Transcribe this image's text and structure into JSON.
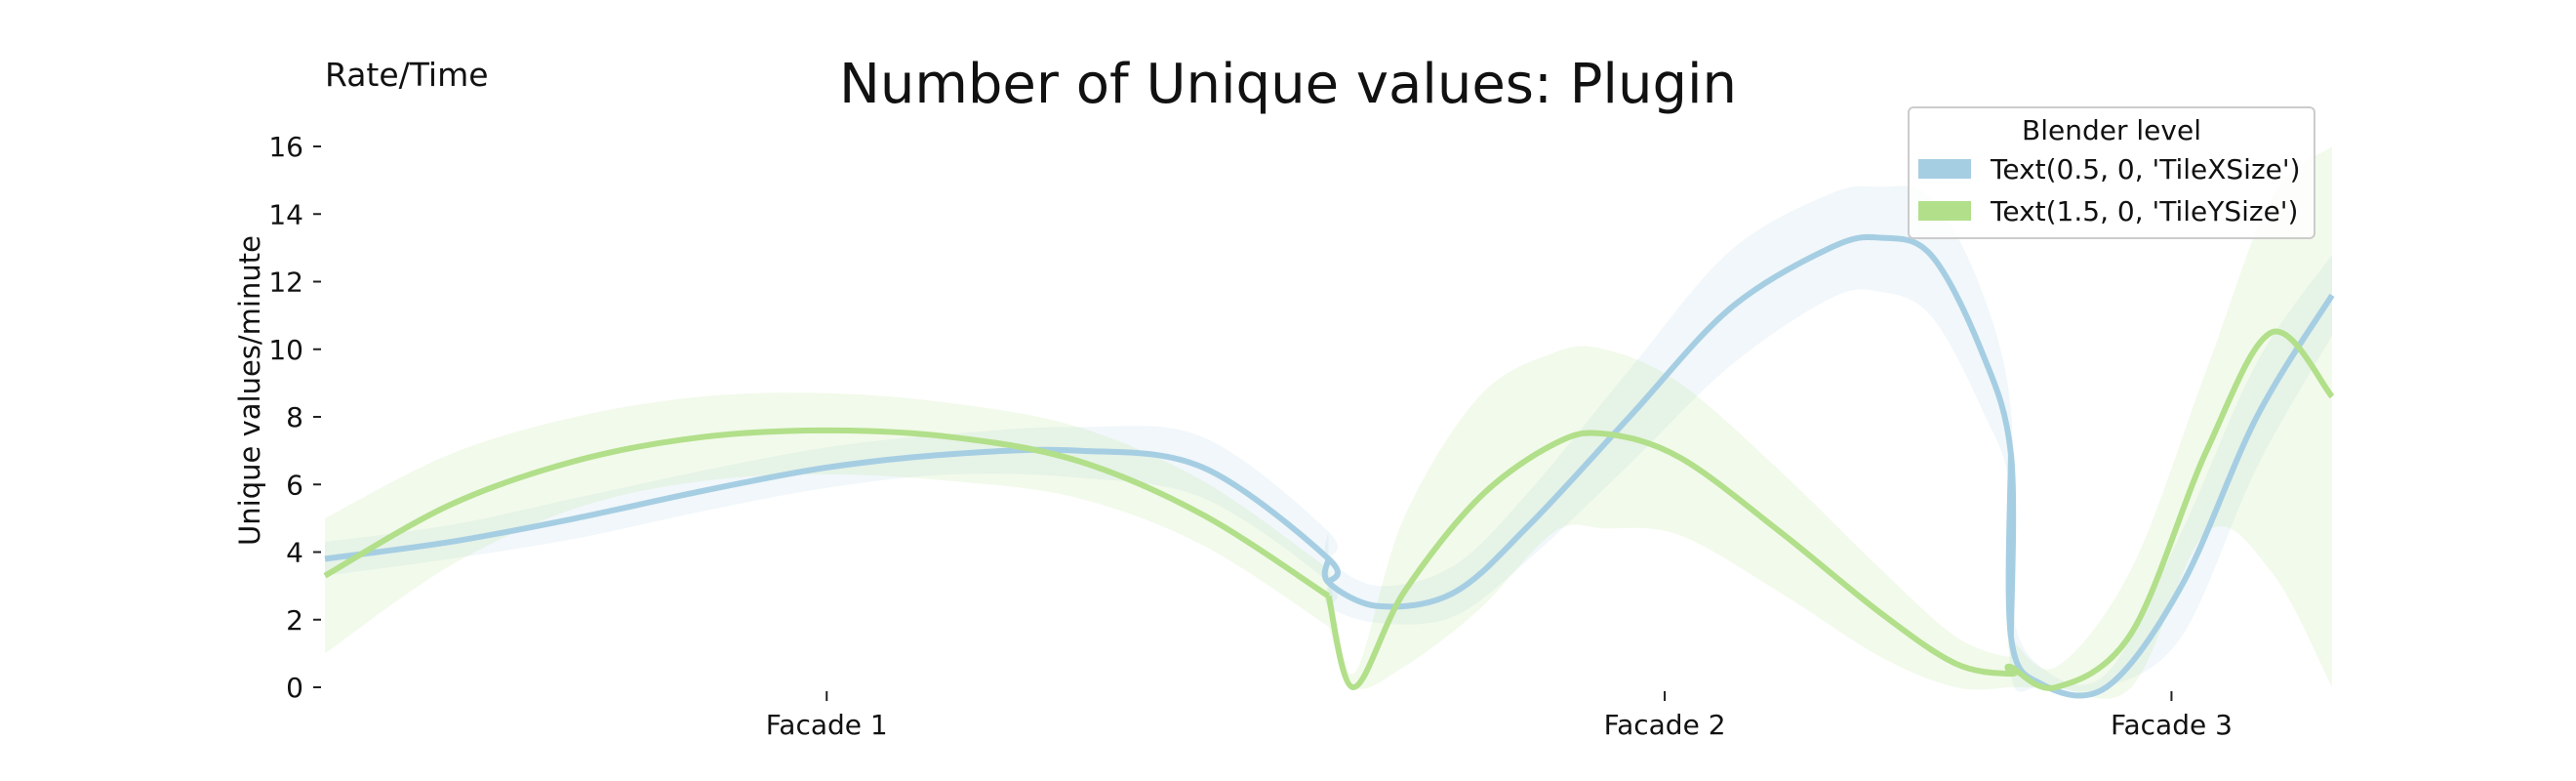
{
  "chart_data": {
    "type": "line",
    "title": "Number of Unique values: Plugin",
    "corner_label": "Rate/Time",
    "xlabel": "",
    "ylabel": "Unique values/minute",
    "ylim": [
      0,
      16
    ],
    "yticks": [
      0,
      2,
      4,
      6,
      8,
      10,
      12,
      14,
      16
    ],
    "xlim": [
      0,
      4
    ],
    "categories": [
      {
        "label": "Facade 1",
        "x": 1.0
      },
      {
        "label": "Facade 2",
        "x": 2.67
      },
      {
        "label": "Facade 3",
        "x": 3.68
      }
    ],
    "segments": [
      [
        0.0,
        2.0
      ],
      [
        2.0,
        3.36
      ],
      [
        3.36,
        4.0
      ]
    ],
    "grid": false,
    "legend": {
      "title": "Blender level",
      "placement": "top-right"
    },
    "series": [
      {
        "name": "Text(0.5, 0, 'TileXSize')",
        "color": "#a6cee3",
        "band_color": "#a6cee3",
        "points": [
          [
            0.0,
            3.8
          ],
          [
            0.25,
            4.3
          ],
          [
            0.5,
            5.0
          ],
          [
            0.75,
            5.8
          ],
          [
            1.0,
            6.5
          ],
          [
            1.25,
            6.9
          ],
          [
            1.5,
            7.0
          ],
          [
            1.75,
            6.5
          ],
          [
            2.0,
            3.8
          ],
          [
            2.0,
            3.1
          ],
          [
            2.1,
            2.4
          ],
          [
            2.25,
            2.8
          ],
          [
            2.4,
            4.8
          ],
          [
            2.6,
            8.0
          ],
          [
            2.8,
            11.2
          ],
          [
            3.0,
            13.0
          ],
          [
            3.1,
            13.3
          ],
          [
            3.2,
            12.8
          ],
          [
            3.3,
            10.0
          ],
          [
            3.36,
            6.9
          ],
          [
            3.36,
            1.5
          ],
          [
            3.42,
            0.1
          ],
          [
            3.55,
            0.0
          ],
          [
            3.7,
            3.0
          ],
          [
            3.85,
            8.0
          ],
          [
            4.0,
            11.6
          ]
        ],
        "lower": [
          [
            0.0,
            3.3
          ],
          [
            0.25,
            3.8
          ],
          [
            0.5,
            4.4
          ],
          [
            0.75,
            5.2
          ],
          [
            1.0,
            5.9
          ],
          [
            1.25,
            6.3
          ],
          [
            1.5,
            6.2
          ],
          [
            1.75,
            5.6
          ],
          [
            2.0,
            3.1
          ],
          [
            2.0,
            2.4
          ],
          [
            2.1,
            1.9
          ],
          [
            2.25,
            2.1
          ],
          [
            2.4,
            3.8
          ],
          [
            2.6,
            6.6
          ],
          [
            2.8,
            9.5
          ],
          [
            3.0,
            11.5
          ],
          [
            3.1,
            11.7
          ],
          [
            3.2,
            11.0
          ],
          [
            3.3,
            8.3
          ],
          [
            3.36,
            5.7
          ],
          [
            3.36,
            0.4
          ],
          [
            3.42,
            0.0
          ],
          [
            3.55,
            0.0
          ],
          [
            3.7,
            1.5
          ],
          [
            3.85,
            6.5
          ],
          [
            4.0,
            10.4
          ]
        ],
        "upper": [
          [
            0.0,
            4.3
          ],
          [
            0.25,
            4.8
          ],
          [
            0.5,
            5.6
          ],
          [
            0.75,
            6.4
          ],
          [
            1.0,
            7.1
          ],
          [
            1.25,
            7.5
          ],
          [
            1.5,
            7.7
          ],
          [
            1.75,
            7.4
          ],
          [
            2.0,
            4.6
          ],
          [
            2.0,
            3.8
          ],
          [
            2.1,
            3.0
          ],
          [
            2.25,
            3.6
          ],
          [
            2.4,
            5.8
          ],
          [
            2.6,
            9.4
          ],
          [
            2.8,
            12.9
          ],
          [
            3.0,
            14.6
          ],
          [
            3.1,
            14.8
          ],
          [
            3.2,
            14.5
          ],
          [
            3.3,
            11.8
          ],
          [
            3.36,
            8.2
          ],
          [
            3.36,
            2.6
          ],
          [
            3.42,
            0.6
          ],
          [
            3.55,
            0.4
          ],
          [
            3.7,
            4.6
          ],
          [
            3.85,
            9.6
          ],
          [
            4.0,
            12.8
          ]
        ]
      },
      {
        "name": "Text(1.5, 0, 'TileYSize')",
        "color": "#b2df8a",
        "band_color": "#b2df8a",
        "points": [
          [
            0.0,
            3.3
          ],
          [
            0.25,
            5.4
          ],
          [
            0.5,
            6.7
          ],
          [
            0.75,
            7.4
          ],
          [
            1.0,
            7.6
          ],
          [
            1.25,
            7.4
          ],
          [
            1.5,
            6.7
          ],
          [
            1.75,
            5.1
          ],
          [
            2.0,
            2.7
          ],
          [
            2.05,
            0.0
          ],
          [
            2.15,
            2.8
          ],
          [
            2.3,
            5.6
          ],
          [
            2.45,
            7.2
          ],
          [
            2.55,
            7.5
          ],
          [
            2.7,
            6.8
          ],
          [
            2.9,
            4.6
          ],
          [
            3.1,
            2.2
          ],
          [
            3.25,
            0.7
          ],
          [
            3.36,
            0.4
          ],
          [
            3.36,
            0.6
          ],
          [
            3.45,
            0.0
          ],
          [
            3.6,
            1.6
          ],
          [
            3.75,
            7.0
          ],
          [
            3.88,
            10.5
          ],
          [
            4.0,
            8.6
          ]
        ],
        "lower": [
          [
            0.0,
            1.0
          ],
          [
            0.25,
            3.6
          ],
          [
            0.5,
            5.3
          ],
          [
            0.75,
            6.1
          ],
          [
            1.0,
            6.3
          ],
          [
            1.25,
            6.1
          ],
          [
            1.5,
            5.6
          ],
          [
            1.75,
            4.2
          ],
          [
            2.0,
            1.8
          ],
          [
            2.05,
            0.0
          ],
          [
            2.15,
            0.6
          ],
          [
            2.3,
            2.3
          ],
          [
            2.45,
            4.6
          ],
          [
            2.55,
            4.7
          ],
          [
            2.7,
            4.5
          ],
          [
            2.9,
            2.8
          ],
          [
            3.1,
            0.9
          ],
          [
            3.25,
            0.0
          ],
          [
            3.36,
            0.0
          ],
          [
            3.36,
            0.0
          ],
          [
            3.45,
            0.0
          ],
          [
            3.6,
            0.0
          ],
          [
            3.75,
            4.6
          ],
          [
            3.88,
            3.4
          ],
          [
            4.0,
            0.0
          ]
        ],
        "upper": [
          [
            0.0,
            5.0
          ],
          [
            0.25,
            6.9
          ],
          [
            0.5,
            8.0
          ],
          [
            0.75,
            8.6
          ],
          [
            1.0,
            8.7
          ],
          [
            1.25,
            8.4
          ],
          [
            1.5,
            7.7
          ],
          [
            1.75,
            6.1
          ],
          [
            2.0,
            3.5
          ],
          [
            2.05,
            0.4
          ],
          [
            2.15,
            5.0
          ],
          [
            2.3,
            8.6
          ],
          [
            2.45,
            9.9
          ],
          [
            2.55,
            10.0
          ],
          [
            2.7,
            9.0
          ],
          [
            2.9,
            6.4
          ],
          [
            3.1,
            3.5
          ],
          [
            3.25,
            1.5
          ],
          [
            3.36,
            0.9
          ],
          [
            3.36,
            1.4
          ],
          [
            3.45,
            0.6
          ],
          [
            3.6,
            3.5
          ],
          [
            3.75,
            9.4
          ],
          [
            3.88,
            14.5
          ],
          [
            4.0,
            16.0
          ]
        ]
      }
    ]
  }
}
